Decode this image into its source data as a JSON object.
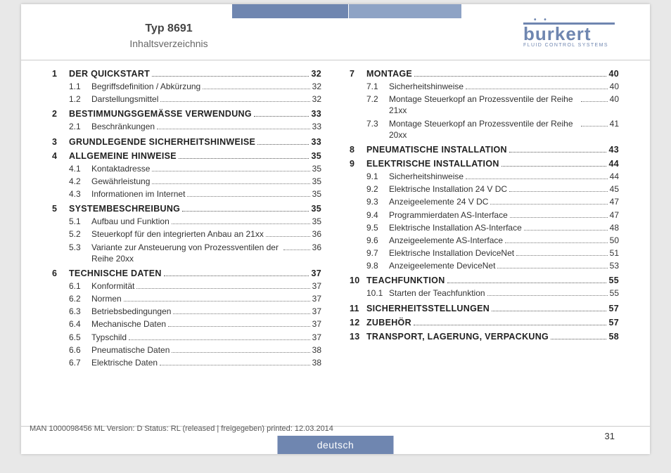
{
  "header": {
    "title": "Typ 8691",
    "subtitle": "Inhaltsverzeichnis",
    "logo_name": "burkert",
    "logo_tagline": "FLUID CONTROL SYSTEMS"
  },
  "footer": {
    "meta": "MAN 1000098456 ML Version: D Status: RL (released | freigegeben) printed: 12.03.2014",
    "page": "31",
    "language": "deutsch"
  },
  "colors": {
    "accent": "#6f86b0"
  },
  "toc_left": [
    {
      "num": "1",
      "title": "Der Quickstart",
      "page": "32",
      "subs": [
        {
          "num": "1.1",
          "title": "Begriffsdefinition / Abkürzung",
          "page": "32"
        },
        {
          "num": "1.2",
          "title": "Darstellungsmittel",
          "page": "32"
        }
      ]
    },
    {
      "num": "2",
      "title": "Bestimmungsgemässe Verwendung",
      "page": "33",
      "subs": [
        {
          "num": "2.1",
          "title": "Beschränkungen",
          "page": "33"
        }
      ]
    },
    {
      "num": "3",
      "title": "Grundlegende Sicherheitshinweise",
      "page": "33",
      "subs": []
    },
    {
      "num": "4",
      "title": "Allgemeine Hinweise",
      "page": "35",
      "subs": [
        {
          "num": "4.1",
          "title": "Kontaktadresse",
          "page": "35"
        },
        {
          "num": "4.2",
          "title": "Gewährleistung",
          "page": "35"
        },
        {
          "num": "4.3",
          "title": "Informationen im Internet",
          "page": "35"
        }
      ]
    },
    {
      "num": "5",
      "title": "Systembeschreibung",
      "page": "35",
      "subs": [
        {
          "num": "5.1",
          "title": "Aufbau und Funktion",
          "page": "35"
        },
        {
          "num": "5.2",
          "title": "Steuerkopf für den integrierten Anbau an 21xx",
          "page": "36"
        },
        {
          "num": "5.3",
          "title": "Variante zur Ansteuerung von Prozessventilen der Reihe 20xx",
          "page": "36",
          "wrap": true
        }
      ]
    },
    {
      "num": "6",
      "title": "Technische Daten",
      "page": "37",
      "subs": [
        {
          "num": "6.1",
          "title": "Konformität",
          "page": "37"
        },
        {
          "num": "6.2",
          "title": "Normen",
          "page": "37"
        },
        {
          "num": "6.3",
          "title": "Betriebsbedingungen",
          "page": "37"
        },
        {
          "num": "6.4",
          "title": "Mechanische Daten",
          "page": "37"
        },
        {
          "num": "6.5",
          "title": "Typschild",
          "page": "37"
        },
        {
          "num": "6.6",
          "title": "Pneumatische Daten",
          "page": "38"
        },
        {
          "num": "6.7",
          "title": "Elektrische Daten",
          "page": "38"
        }
      ]
    }
  ],
  "toc_right": [
    {
      "num": "7",
      "title": "Montage",
      "page": "40",
      "subs": [
        {
          "num": "7.1",
          "title": "Sicherheitshinweise",
          "page": "40"
        },
        {
          "num": "7.2",
          "title": "Montage Steuerkopf an Prozessventile der Reihe 21xx",
          "page": "40",
          "wrap": true
        },
        {
          "num": "7.3",
          "title": "Montage Steuerkopf an Prozessventile der Reihe 20xx",
          "page": "41",
          "wrap": true
        }
      ]
    },
    {
      "num": "8",
      "title": "Pneumatische Installation",
      "page": "43",
      "subs": []
    },
    {
      "num": "9",
      "title": "Elektrische Installation",
      "page": "44",
      "subs": [
        {
          "num": "9.1",
          "title": "Sicherheitshinweise",
          "page": "44"
        },
        {
          "num": "9.2",
          "title": "Elektrische Installation 24 V DC",
          "page": "45"
        },
        {
          "num": "9.3",
          "title": "Anzeigeelemente 24 V DC",
          "page": "47"
        },
        {
          "num": "9.4",
          "title": "Programmierdaten AS-Interface",
          "page": "47"
        },
        {
          "num": "9.5",
          "title": "Elektrische Installation AS-Interface",
          "page": "48"
        },
        {
          "num": "9.6",
          "title": "Anzeigeelemente AS-Interface",
          "page": "50"
        },
        {
          "num": "9.7",
          "title": "Elektrische Installation DeviceNet",
          "page": "51"
        },
        {
          "num": "9.8",
          "title": "Anzeigeelemente DeviceNet",
          "page": "53"
        }
      ]
    },
    {
      "num": "10",
      "title": "Teachfunktion",
      "page": "55",
      "subs": [
        {
          "num": "10.1",
          "title": "Starten der Teachfunktion",
          "page": "55"
        }
      ]
    },
    {
      "num": "11",
      "title": "Sicherheitsstellungen",
      "page": "57",
      "subs": []
    },
    {
      "num": "12",
      "title": "Zubehör",
      "page": "57",
      "subs": []
    },
    {
      "num": "13",
      "title": "Transport, Lagerung, Verpackung",
      "page": "58",
      "subs": []
    }
  ]
}
